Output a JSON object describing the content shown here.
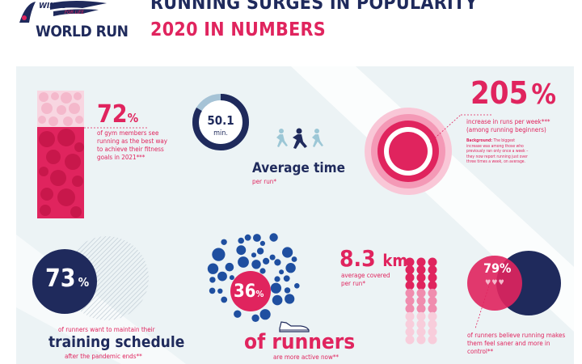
{
  "header": {
    "logo_line1": "WINGS",
    "logo_line2": "FOR LIFE",
    "logo_line3": "WORLD RUN",
    "title": "RUNNING SURGES IN POPULARITY",
    "subtitle": "2020 IN NUMBERS"
  },
  "stats": {
    "gym": {
      "value": "72",
      "unit": "%",
      "text": "of gym members see running as the best way to achieve their fitness goals in 2021***"
    },
    "time": {
      "value": "50.1",
      "unit": "min.",
      "label": "Average time",
      "sub": "per run*",
      "fraction": 0.835
    },
    "weekly": {
      "value": "205",
      "unit": "%",
      "text": "increase in runs per week*** (among running beginners)",
      "bg_label": "Background:",
      "bg_text": "The biggest increase was among those who previously ran only once a week – they now report running just over three times a week, on average."
    },
    "schedule": {
      "value": "73",
      "unit": "%",
      "text1": "of runners want to maintain their",
      "label": "training schedule",
      "text2": "after the pandemic ends**"
    },
    "active": {
      "value": "36",
      "unit": "%",
      "label": "of runners",
      "sub": "are more active now**"
    },
    "distance": {
      "value": "8.3",
      "unit": "km",
      "text": "average covered per run*"
    },
    "saner": {
      "value": "79%",
      "text": "of runners believe running makes them feel saner and more in control**"
    }
  },
  "colors": {
    "navy": "#1f2a5c",
    "pink": "#e0245e",
    "light_pink": "#f4b8cb",
    "panel": "#ecf3f5"
  }
}
